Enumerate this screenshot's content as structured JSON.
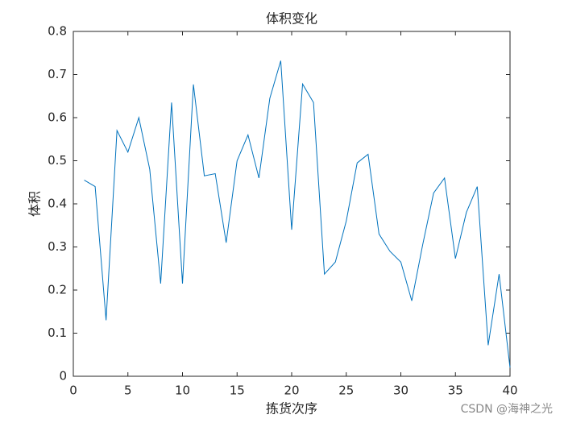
{
  "chart_data": {
    "type": "line",
    "title": "体积变化",
    "xlabel": "拣货次序",
    "ylabel": "体积",
    "x": [
      1,
      2,
      3,
      4,
      5,
      6,
      7,
      8,
      9,
      10,
      11,
      12,
      13,
      14,
      15,
      16,
      17,
      18,
      19,
      20,
      21,
      22,
      23,
      24,
      25,
      26,
      27,
      28,
      29,
      30,
      31,
      32,
      33,
      34,
      35,
      36,
      37,
      38,
      39,
      40
    ],
    "series": [
      {
        "color": "#0072bd",
        "values": [
          0.455,
          0.44,
          0.13,
          0.57,
          0.52,
          0.6,
          0.48,
          0.215,
          0.635,
          0.215,
          0.677,
          0.465,
          0.47,
          0.31,
          0.5,
          0.56,
          0.46,
          0.645,
          0.732,
          0.34,
          0.678,
          0.635,
          0.237,
          0.265,
          0.36,
          0.495,
          0.515,
          0.33,
          0.29,
          0.265,
          0.175,
          0.305,
          0.425,
          0.46,
          0.273,
          0.38,
          0.44,
          0.072,
          0.237,
          0.02
        ]
      }
    ],
    "xlim": [
      0,
      40
    ],
    "xticks": [
      0,
      5,
      10,
      15,
      20,
      25,
      30,
      35,
      40
    ],
    "ylim": [
      0,
      0.8
    ],
    "yticks": [
      0,
      0.1,
      0.2,
      0.3,
      0.4,
      0.5,
      0.6,
      0.7,
      0.8
    ],
    "grid": false
  },
  "watermark": "CSDN @海神之光"
}
